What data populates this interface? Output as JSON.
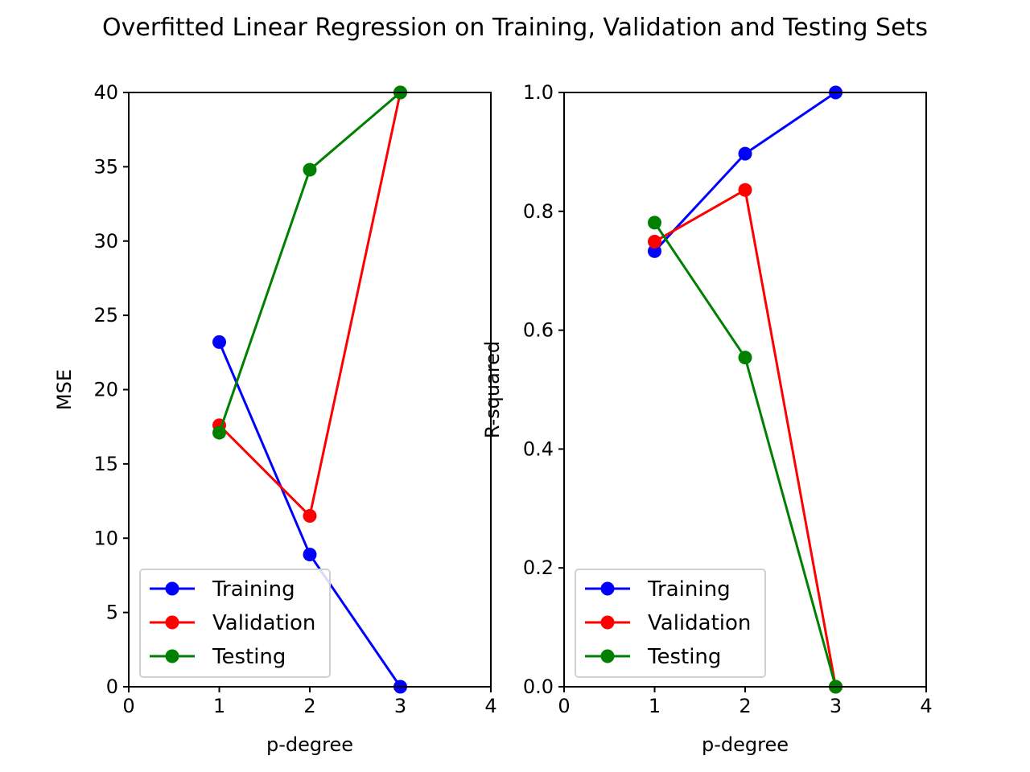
{
  "figure": {
    "title": "Overfitted Linear Regression on Training, Validation and Testing Sets"
  },
  "chart_data": [
    {
      "type": "line",
      "xlabel": "p-degree",
      "ylabel": "MSE",
      "xlim": [
        0,
        4
      ],
      "ylim": [
        0,
        40
      ],
      "xticks": [
        "0",
        "1",
        "2",
        "3",
        "4"
      ],
      "yticks": [
        "0",
        "5",
        "10",
        "15",
        "20",
        "25",
        "30",
        "35",
        "40"
      ],
      "x": [
        1,
        2,
        3
      ],
      "legend_position": "lower-left",
      "grid": false,
      "series": [
        {
          "name": "Training",
          "color": "#0000ff",
          "values": [
            23.2,
            8.9,
            0.0
          ]
        },
        {
          "name": "Validation",
          "color": "#ff0000",
          "values": [
            17.6,
            11.5,
            40.0
          ]
        },
        {
          "name": "Testing",
          "color": "#008000",
          "values": [
            17.1,
            34.8,
            40.0
          ]
        }
      ]
    },
    {
      "type": "line",
      "xlabel": "p-degree",
      "ylabel": "R-squared",
      "xlim": [
        0,
        4
      ],
      "ylim": [
        0,
        1
      ],
      "xticks": [
        "0",
        "1",
        "2",
        "3",
        "4"
      ],
      "yticks": [
        "0.0",
        "0.2",
        "0.4",
        "0.6",
        "0.8",
        "1.0"
      ],
      "x": [
        1,
        2,
        3
      ],
      "legend_position": "lower-left",
      "grid": false,
      "series": [
        {
          "name": "Training",
          "color": "#0000ff",
          "values": [
            0.733,
            0.897,
            1.0
          ]
        },
        {
          "name": "Validation",
          "color": "#ff0000",
          "values": [
            0.749,
            0.836,
            0.0
          ]
        },
        {
          "name": "Testing",
          "color": "#008000",
          "values": [
            0.781,
            0.554,
            0.0
          ]
        }
      ]
    }
  ]
}
